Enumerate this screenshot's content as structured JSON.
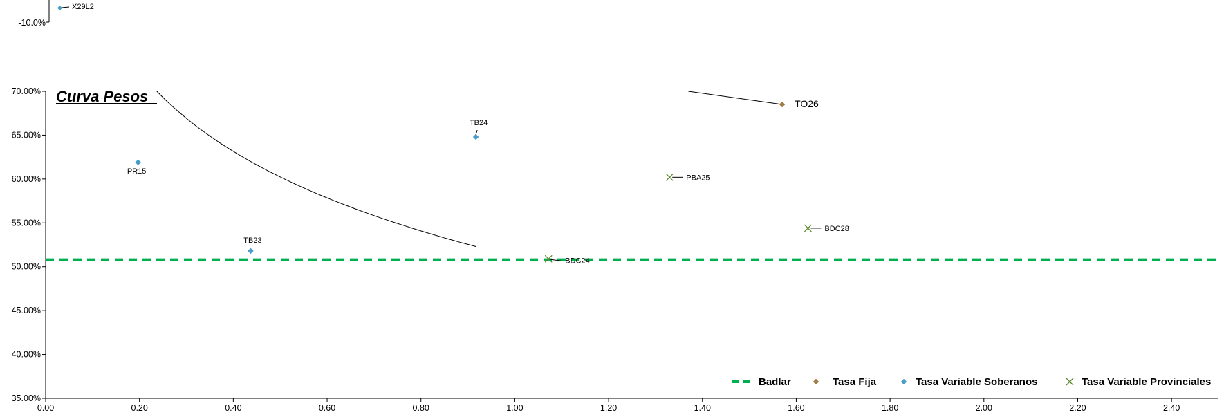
{
  "top_fragment": {
    "tick_label": "-10.0%",
    "point_label": "X29L2"
  },
  "chart_data": {
    "type": "scatter",
    "title": "Curva  Pesos",
    "xlabel": "",
    "ylabel": "",
    "xlim": [
      0,
      2.5
    ],
    "ylim": [
      35,
      70
    ],
    "x_ticks": [
      0,
      0.2,
      0.4,
      0.6,
      0.8,
      1.0,
      1.2,
      1.4,
      1.6,
      1.8,
      2.0,
      2.2,
      2.4
    ],
    "x_tick_labels": [
      "0.00",
      "0.20",
      "0.40",
      "0.60",
      "0.80",
      "1.00",
      "1.20",
      "1.40",
      "1.60",
      "1.80",
      "2.00",
      "2.20",
      "2.40"
    ],
    "y_ticks": [
      35,
      40,
      45,
      50,
      55,
      60,
      65,
      70
    ],
    "y_tick_labels": [
      "35.00%",
      "40.00%",
      "45.00%",
      "50.00%",
      "55.00%",
      "60.00%",
      "65.00%",
      "70.00%"
    ],
    "grid": false,
    "legend_position": "bottom-right",
    "badlar": {
      "name": "Badlar",
      "value": 50.8,
      "color": "#00b050"
    },
    "series": [
      {
        "name": "Tasa Fija",
        "marker": "diamond",
        "color": "#a07c45",
        "points": [
          {
            "x": 1.57,
            "y": 68.5,
            "label": "TO26"
          }
        ]
      },
      {
        "name": "Tasa Variable Soberanos",
        "marker": "diamond",
        "color": "#4a9cc9",
        "points": [
          {
            "x": 0.197,
            "y": 61.9,
            "label": "PR15"
          },
          {
            "x": 0.437,
            "y": 51.8,
            "label": "TB23"
          },
          {
            "x": 0.917,
            "y": 64.8,
            "label": "TB24"
          }
        ]
      },
      {
        "name": "Tasa Variable Provinciales",
        "marker": "x",
        "color": "#5b8a2e",
        "points": [
          {
            "x": 1.072,
            "y": 50.9,
            "label": "BDC24"
          },
          {
            "x": 1.33,
            "y": 60.2,
            "label": "PBA25"
          },
          {
            "x": 1.625,
            "y": 54.4,
            "label": "BDC28"
          }
        ]
      }
    ],
    "trend_segments": [
      {
        "x": [
          0.237,
          0.917
        ],
        "y": [
          70.0,
          52.3
        ]
      },
      {
        "x": [
          1.37,
          1.57
        ],
        "y": [
          70.0,
          68.5
        ]
      }
    ]
  }
}
